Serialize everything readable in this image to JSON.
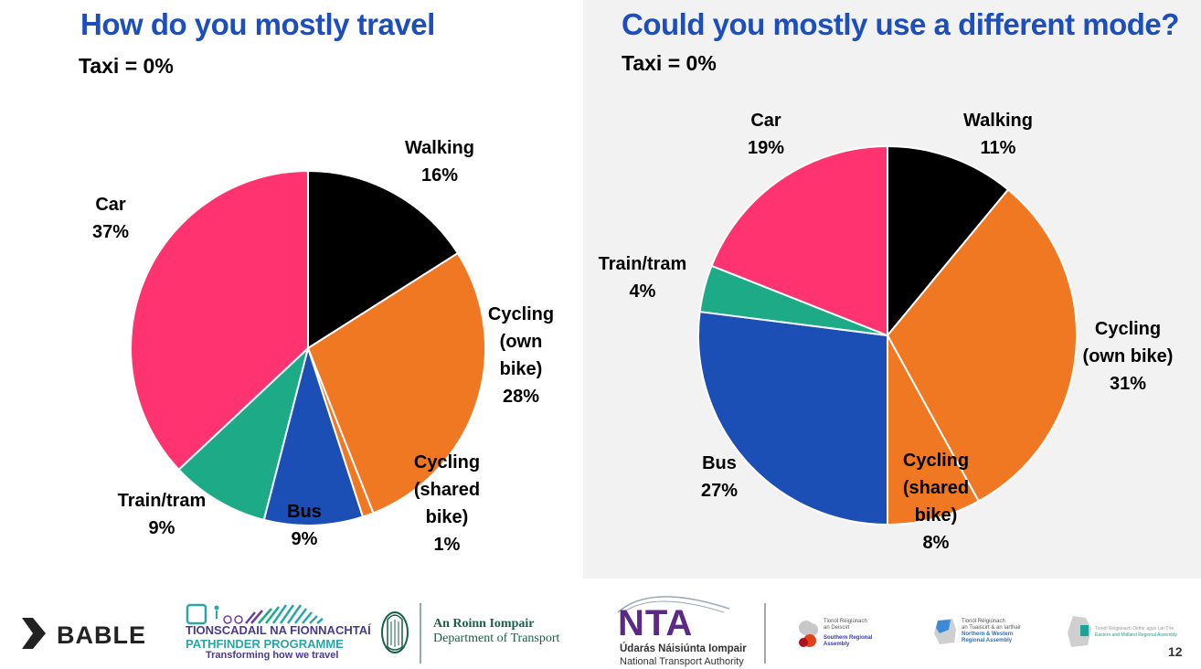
{
  "chart_data": [
    {
      "type": "pie",
      "title": "How do you mostly travel",
      "subtitle": "Taxi = 0%",
      "slices": [
        {
          "label": "Walking",
          "value": 16,
          "color": "#000000",
          "label_lines": [
            "Walking",
            "16%"
          ]
        },
        {
          "label": "Cycling (own bike)",
          "value": 28,
          "color": "#f07822",
          "label_lines": [
            "Cycling",
            "(own",
            "bike)",
            "28%"
          ]
        },
        {
          "label": "Cycling (shared bike)",
          "value": 1,
          "color": "#f07822",
          "label_lines": [
            "Cycling",
            "(shared",
            "bike)",
            "1%"
          ]
        },
        {
          "label": "Bus",
          "value": 9,
          "color": "#1c4fb5",
          "label_lines": [
            "Bus",
            "9%"
          ]
        },
        {
          "label": "Train/tram",
          "value": 9,
          "color": "#1dab87",
          "label_lines": [
            "Train/tram",
            "9%"
          ]
        },
        {
          "label": "Car",
          "value": 37,
          "color": "#fe3370",
          "label_lines": [
            "Car",
            "37%"
          ]
        }
      ]
    },
    {
      "type": "pie",
      "title": "Could you mostly use a different mode?",
      "subtitle": "Taxi = 0%",
      "slices": [
        {
          "label": "Walking",
          "value": 11,
          "color": "#000000",
          "label_lines": [
            "Walking",
            "11%"
          ]
        },
        {
          "label": "Cycling (own bike)",
          "value": 31,
          "color": "#f07822",
          "label_lines": [
            "Cycling",
            "(own bike)",
            "31%"
          ]
        },
        {
          "label": "Cycling (shared bike)",
          "value": 8,
          "color": "#f07822",
          "label_lines": [
            "Cycling",
            "(shared",
            "bike)",
            "8%"
          ]
        },
        {
          "label": "Bus",
          "value": 27,
          "color": "#1c4fb5",
          "label_lines": [
            "Bus",
            "27%"
          ]
        },
        {
          "label": "Train/tram",
          "value": 4,
          "color": "#1dab87",
          "label_lines": [
            "Train/tram",
            "4%"
          ]
        },
        {
          "label": "Car",
          "value": 19,
          "color": "#fe3370",
          "label_lines": [
            "Car",
            "19%"
          ]
        }
      ]
    }
  ],
  "footer": {
    "bable": "BABLE",
    "pathfinder_line1": "TIONSCADAIL NA FIONNACHTAÍ",
    "pathfinder_line2": "PATHFINDER PROGRAMME",
    "pathfinder_line3": "Transforming how we travel",
    "dot_line1": "An Roinn Iompair",
    "dot_line2": "Department of Transport",
    "nta": "NTA",
    "nta_line1": "Údarás Náisiúnta Iompair",
    "nta_line2": "National Transport Authority",
    "sra_line1": "Tionól Réigiúnach",
    "sra_line2": "an Deiscirt",
    "sra_line3": "Southern Regional",
    "sra_line4": "Assembly",
    "nwra_line1": "Tionól Réigiúnach",
    "nwra_line2": "an Tuaiscirt & an Iarthair",
    "nwra_line3": "Northern & Western",
    "nwra_line4": "Regional Assembly",
    "emra_line1": "Tionól Réigiúnach Oirthir agus Lár-Tíre",
    "emra_line2": "Eastern and Midland Regional Assembly",
    "page_number": "12"
  }
}
